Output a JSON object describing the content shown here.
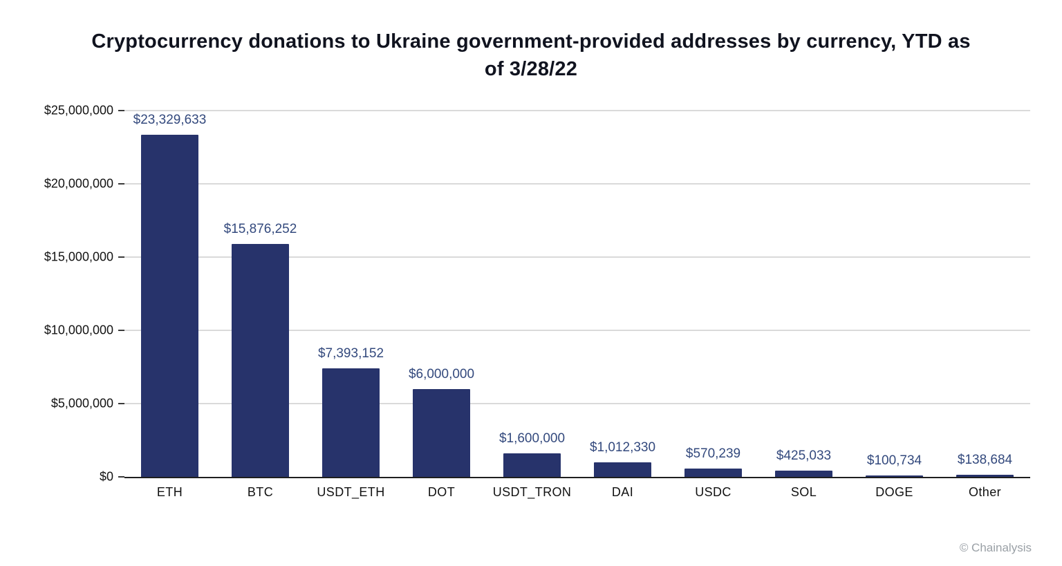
{
  "chart_data": {
    "type": "bar",
    "title": "Cryptocurrency donations to Ukraine government-provided addresses by currency, YTD as\nof 3/28/22",
    "categories": [
      "ETH",
      "BTC",
      "USDT_ETH",
      "DOT",
      "USDT_TRON",
      "DAI",
      "USDC",
      "SOL",
      "DOGE",
      "Other"
    ],
    "values": [
      23329633,
      15876252,
      7393152,
      6000000,
      1600000,
      1012330,
      570239,
      425033,
      100734,
      138684
    ],
    "value_labels": [
      "$23,329,633",
      "$15,876,252",
      "$7,393,152",
      "$6,000,000",
      "$1,600,000",
      "$1,012,330",
      "$570,239",
      "$425,033",
      "$100,734",
      "$138,684"
    ],
    "xlabel": "",
    "ylabel": "",
    "ylim": [
      0,
      25000000
    ],
    "yticks": [
      {
        "value": 0,
        "label": "$0"
      },
      {
        "value": 5000000,
        "label": "$5,000,000"
      },
      {
        "value": 10000000,
        "label": "$10,000,000"
      },
      {
        "value": 15000000,
        "label": "$15,000,000"
      },
      {
        "value": 20000000,
        "label": "$20,000,000"
      },
      {
        "value": 25000000,
        "label": "$25,000,000"
      }
    ],
    "grid": "horizontal",
    "legend": "none",
    "bar_color": "#27336b",
    "label_color": "#33497d"
  },
  "footer": {
    "attribution": "© Chainalysis"
  }
}
